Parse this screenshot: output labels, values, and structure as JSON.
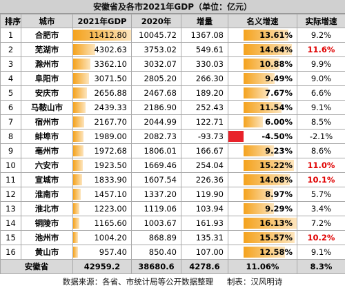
{
  "title": "安徽省及各市2021年GDP（单位：亿元）",
  "table": {
    "columns": [
      "排序",
      "城市",
      "2021年GDP",
      "2020年",
      "增量",
      "名义增速",
      "实际增速"
    ],
    "rows": [
      [
        "1",
        "合肥市",
        "11412.80",
        "10045.72",
        "1367.08",
        "13.61%",
        "9.2%"
      ],
      [
        "2",
        "芜湖市",
        "4302.63",
        "3753.02",
        "549.61",
        "14.64%",
        "11.6%"
      ],
      [
        "3",
        "滁州市",
        "3362.10",
        "3032.07",
        "330.03",
        "10.88%",
        "9.9%"
      ],
      [
        "4",
        "阜阳市",
        "3071.50",
        "2805.20",
        "266.30",
        "9.49%",
        "9.0%"
      ],
      [
        "5",
        "安庆市",
        "2656.88",
        "2467.68",
        "189.20",
        "7.67%",
        "6.6%"
      ],
      [
        "6",
        "马鞍山市",
        "2439.33",
        "2186.90",
        "252.43",
        "11.54%",
        "9.1%"
      ],
      [
        "7",
        "宿州市",
        "2167.70",
        "2044.99",
        "122.71",
        "6.00%",
        "8.5%"
      ],
      [
        "8",
        "蚌埠市",
        "1989.00",
        "2082.73",
        "-93.73",
        "-4.50%",
        "-2.1%"
      ],
      [
        "9",
        "亳州市",
        "1972.68",
        "1806.01",
        "166.67",
        "9.23%",
        "8.6%"
      ],
      [
        "10",
        "六安市",
        "1923.50",
        "1669.46",
        "254.04",
        "15.22%",
        "11.0%"
      ],
      [
        "11",
        "宣城市",
        "1833.90",
        "1607.54",
        "226.36",
        "14.08%",
        "10.1%"
      ],
      [
        "12",
        "淮南市",
        "1457.10",
        "1337.20",
        "119.90",
        "8.97%",
        "5.7%"
      ],
      [
        "13",
        "淮北市",
        "1223.00",
        "1119.06",
        "103.94",
        "9.29%",
        "3.4%"
      ],
      [
        "14",
        "铜陵市",
        "1165.60",
        "1003.67",
        "161.93",
        "16.13%",
        "7.2%"
      ],
      [
        "15",
        "池州市",
        "1004.20",
        "868.89",
        "135.31",
        "15.57%",
        "10.2%"
      ],
      [
        "16",
        "黄山市",
        "957.40",
        "850.40",
        "107.00",
        "12.58%",
        "9.1%"
      ]
    ],
    "total": [
      "安徽省",
      "42959.2",
      "38680.6",
      "4278.6",
      "11.06%",
      "8.3%"
    ]
  },
  "footer": {
    "source": "数据来源：各省、市统计局等公开数据整理",
    "author": "制表：汉风明诗"
  }
}
